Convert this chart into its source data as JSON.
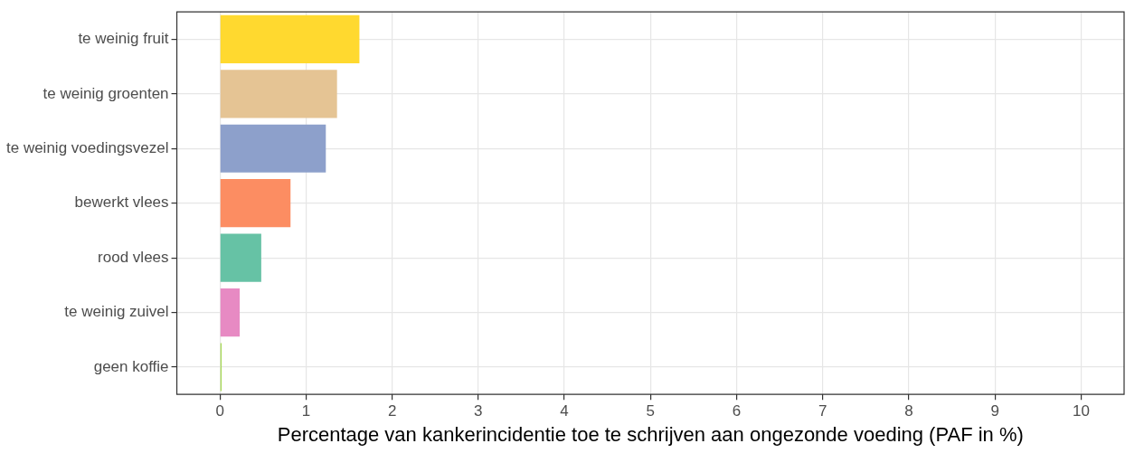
{
  "chart_data": {
    "type": "bar",
    "orientation": "horizontal",
    "xlabel": "Percentage van kankerincidentie toe te schrijven aan ongezonde voeding (PAF in %)",
    "categories": [
      "te weinig fruit",
      "te weinig groenten",
      "te weinig voedingsvezel",
      "bewerkt vlees",
      "rood vlees",
      "te weinig zuivel",
      "geen koffie"
    ],
    "values": [
      1.62,
      1.36,
      1.23,
      0.82,
      0.48,
      0.23,
      0.02
    ],
    "colors": [
      "#ffd92f",
      "#e5c494",
      "#8da0cb",
      "#fc8d62",
      "#66c2a5",
      "#e78ac3",
      "#a6d854"
    ],
    "xlim": [
      -0.5,
      10.5
    ],
    "xticks": [
      0,
      1,
      2,
      3,
      4,
      5,
      6,
      7,
      8,
      9,
      10
    ],
    "grid": true,
    "legend": false
  }
}
